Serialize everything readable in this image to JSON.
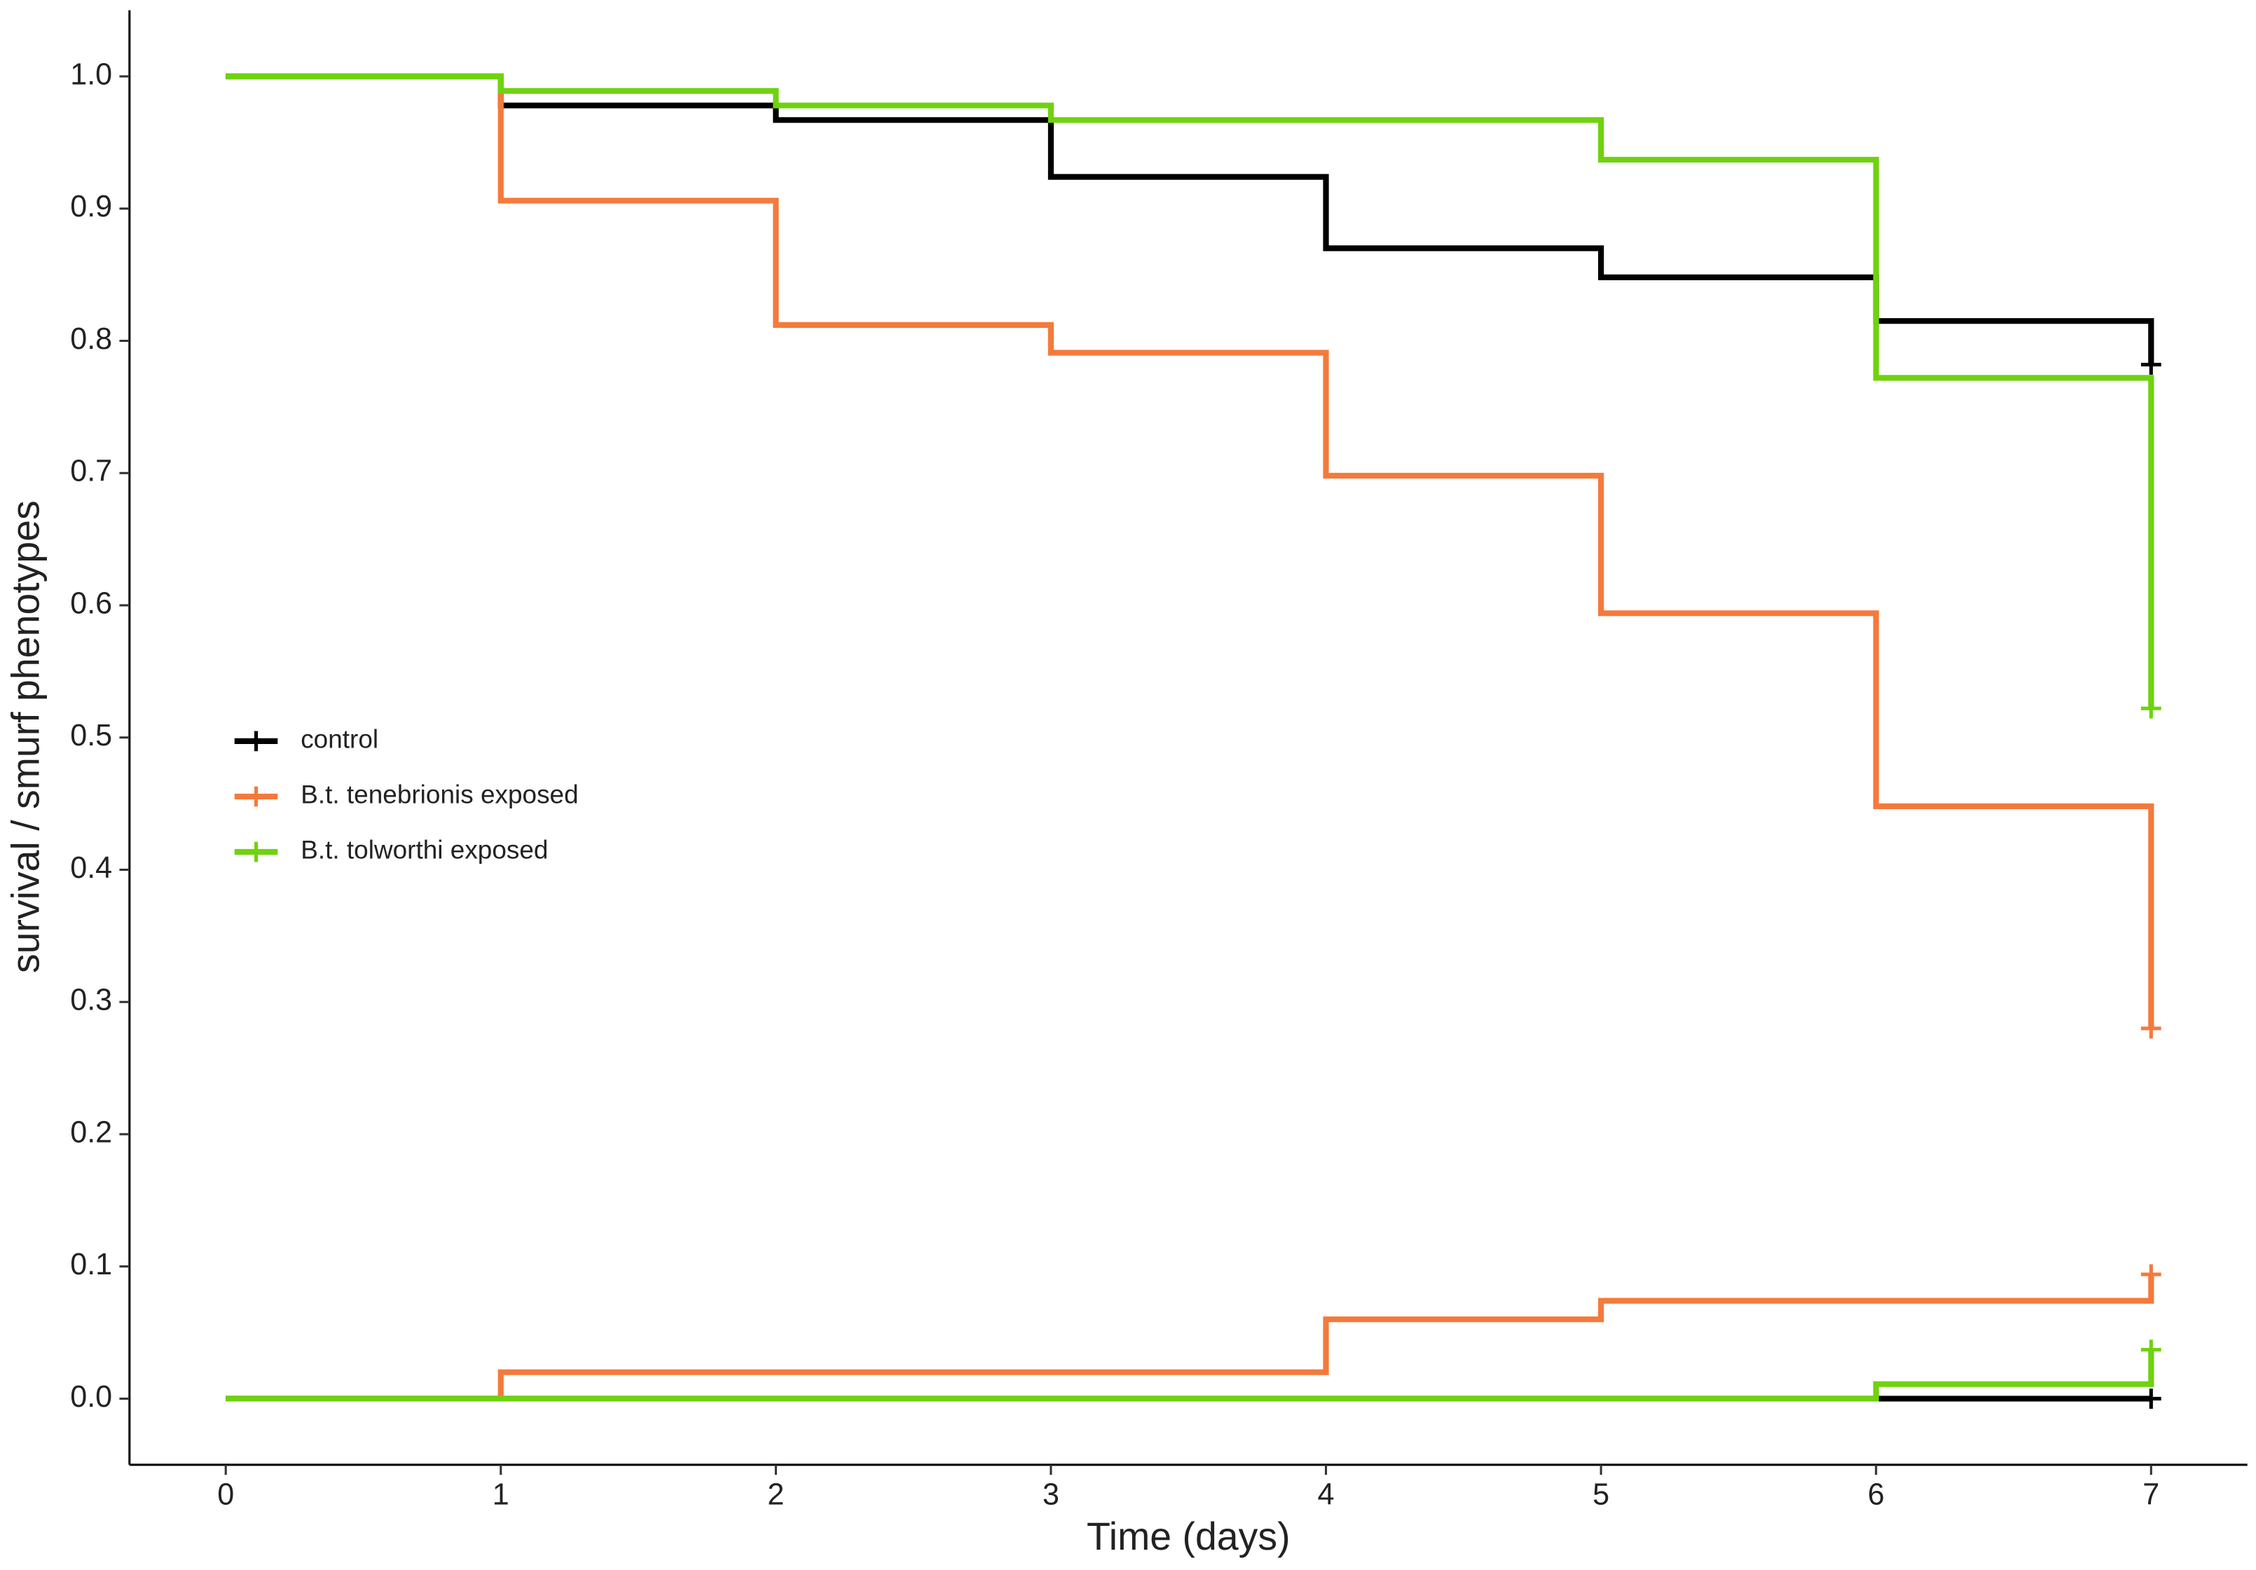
{
  "chart_data": {
    "type": "line",
    "step": true,
    "x_label": "Time (days)",
    "y_label": "survival / smurf phenotypes",
    "x": [
      0,
      1,
      2,
      3,
      4,
      5,
      6,
      7
    ],
    "series": [
      {
        "name": "control",
        "color": "#000000",
        "values": [
          1.0,
          0.978,
          0.967,
          0.924,
          0.87,
          0.848,
          0.815,
          0.782
        ],
        "smurf_values": [
          0,
          0,
          0,
          0,
          0,
          0,
          0,
          0
        ]
      },
      {
        "name": "B.t. tenebrionis exposed",
        "color": "#f47a3c",
        "values": [
          1.0,
          0.906,
          0.812,
          0.791,
          0.698,
          0.594,
          0.448,
          0.28
        ],
        "smurf_values": [
          0,
          0.02,
          0.02,
          0.02,
          0.06,
          0.074,
          0.074,
          0.094
        ]
      },
      {
        "name": "B.t. tolworthi exposed",
        "color": "#6fd20f",
        "values": [
          1.0,
          0.989,
          0.978,
          0.967,
          0.967,
          0.937,
          0.772,
          0.522
        ],
        "smurf_values": [
          0,
          0,
          0,
          0,
          0,
          0,
          0.011,
          0.037
        ]
      }
    ],
    "xlim": [
      -0.35,
      7.35
    ],
    "ylim": [
      -0.05,
      1.05
    ],
    "xticks": [
      0,
      1,
      2,
      3,
      4,
      5,
      6,
      7
    ],
    "yticks": [
      {
        "value": 0,
        "label": "0.0"
      },
      0.1,
      0.2,
      0.3,
      0.4,
      0.5,
      0.6,
      0.7,
      0.8,
      0.9,
      {
        "value": 1,
        "label": "1.0"
      }
    ],
    "grid": false,
    "legend_position": "left"
  }
}
